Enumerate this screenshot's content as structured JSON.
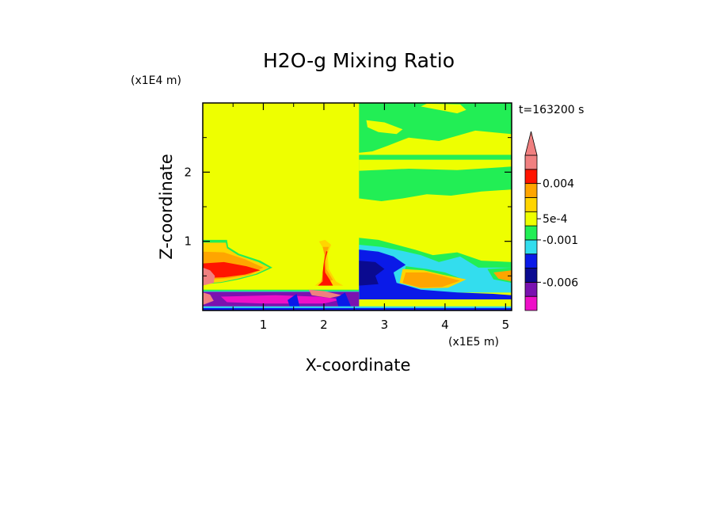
{
  "colors": {
    "yellow": "#eeff00",
    "green": "#22ee55",
    "cyan": "#33ddee",
    "blue": "#0a1ae8",
    "navy": "#0a0a90",
    "purple": "#7a12b0",
    "magenta": "#ee10c8",
    "orange": "#ffa500",
    "gold": "#ffd500",
    "red": "#ff1400",
    "salmon": "#f08080",
    "white": "#ffffff"
  },
  "chart_data": {
    "type": "heatmap",
    "title": "H2O-g Mixing Ratio",
    "xlabel": "X-coordinate",
    "ylabel": "Z-coordinate",
    "x_unit": "(x1E5 m)",
    "y_unit": "(x1E4 m)",
    "time_label": "t=163200 s",
    "xlim": [
      0,
      5.1
    ],
    "ylim": [
      0,
      3.0
    ],
    "x_ticks": [
      {
        "value": 1,
        "label": "1"
      },
      {
        "value": 2,
        "label": "2"
      },
      {
        "value": 3,
        "label": "3"
      },
      {
        "value": 4,
        "label": "4"
      },
      {
        "value": 5,
        "label": "5"
      }
    ],
    "y_ticks": [
      {
        "value": 1,
        "label": "1"
      },
      {
        "value": 2,
        "label": "2"
      }
    ],
    "colorbar": {
      "levels": [
        {
          "color": "magenta"
        },
        {
          "color": "purple"
        },
        {
          "color": "navy"
        },
        {
          "color": "blue"
        },
        {
          "color": "cyan"
        },
        {
          "color": "green"
        },
        {
          "color": "yellow"
        },
        {
          "color": "gold"
        },
        {
          "color": "orange"
        },
        {
          "color": "red"
        },
        {
          "color": "salmon"
        }
      ],
      "labels": [
        {
          "level": 2.0,
          "text": "-0.006"
        },
        {
          "level": 5.0,
          "text": "-0.001"
        },
        {
          "level": 6.5,
          "text": "5e-4"
        },
        {
          "level": 9.0,
          "text": "0.004"
        }
      ]
    },
    "regions": [
      {
        "color": "yellow",
        "pts": [
          [
            0,
            3.0
          ],
          [
            5.1,
            3.0
          ],
          [
            5.1,
            0
          ],
          [
            0,
            0
          ]
        ]
      },
      {
        "color": "green",
        "pts": [
          [
            2.58,
            3.0
          ],
          [
            5.1,
            3.0
          ],
          [
            5.1,
            2.55
          ],
          [
            4.5,
            2.6
          ],
          [
            3.9,
            2.45
          ],
          [
            3.4,
            2.5
          ],
          [
            3.05,
            2.38
          ],
          [
            2.8,
            2.3
          ],
          [
            2.58,
            2.28
          ]
        ]
      },
      {
        "color": "green",
        "pts": [
          [
            2.58,
            2.25
          ],
          [
            5.1,
            2.25
          ],
          [
            5.1,
            1.75
          ],
          [
            4.6,
            1.72
          ],
          [
            4.1,
            1.66
          ],
          [
            3.7,
            1.68
          ],
          [
            3.3,
            1.62
          ],
          [
            2.95,
            1.58
          ],
          [
            2.58,
            1.62
          ]
        ]
      },
      {
        "color": "yellow",
        "pts": [
          [
            2.58,
            2.18
          ],
          [
            5.1,
            2.18
          ],
          [
            5.1,
            2.08
          ],
          [
            4.2,
            2.03
          ],
          [
            3.4,
            2.05
          ],
          [
            2.58,
            2.02
          ]
        ]
      },
      {
        "color": "yellow",
        "pts": [
          [
            2.7,
            2.75
          ],
          [
            3.0,
            2.72
          ],
          [
            3.3,
            2.62
          ],
          [
            3.2,
            2.55
          ],
          [
            2.9,
            2.58
          ],
          [
            2.72,
            2.65
          ]
        ]
      },
      {
        "color": "yellow",
        "pts": [
          [
            3.6,
            2.95
          ],
          [
            3.9,
            2.9
          ],
          [
            4.2,
            2.85
          ],
          [
            4.35,
            2.9
          ],
          [
            4.25,
            2.98
          ],
          [
            3.7,
            2.99
          ]
        ]
      },
      {
        "color": "green",
        "pts": [
          [
            0,
            1.02
          ],
          [
            0.4,
            1.02
          ],
          [
            0.42,
            0.92
          ],
          [
            0.6,
            0.82
          ],
          [
            0.95,
            0.72
          ],
          [
            1.15,
            0.62
          ],
          [
            0.9,
            0.52
          ],
          [
            0.6,
            0.45
          ],
          [
            0.3,
            0.4
          ],
          [
            0,
            0.38
          ]
        ]
      },
      {
        "color": "gold",
        "pts": [
          [
            0,
            0.98
          ],
          [
            0.38,
            0.98
          ],
          [
            0.4,
            0.9
          ],
          [
            0.58,
            0.8
          ],
          [
            0.92,
            0.7
          ],
          [
            1.1,
            0.62
          ],
          [
            0.88,
            0.53
          ],
          [
            0.58,
            0.46
          ],
          [
            0.3,
            0.41
          ],
          [
            0,
            0.39
          ]
        ]
      },
      {
        "color": "orange",
        "pts": [
          [
            0,
            0.85
          ],
          [
            0.35,
            0.84
          ],
          [
            0.7,
            0.74
          ],
          [
            1.0,
            0.62
          ],
          [
            0.78,
            0.52
          ],
          [
            0.45,
            0.47
          ],
          [
            0,
            0.44
          ]
        ]
      },
      {
        "color": "red",
        "pts": [
          [
            0,
            0.68
          ],
          [
            0.35,
            0.7
          ],
          [
            0.72,
            0.64
          ],
          [
            0.95,
            0.58
          ],
          [
            0.7,
            0.52
          ],
          [
            0.35,
            0.48
          ],
          [
            0,
            0.47
          ]
        ]
      },
      {
        "color": "salmon",
        "pts": [
          [
            0,
            0.62
          ],
          [
            0.12,
            0.58
          ],
          [
            0.2,
            0.5
          ],
          [
            0.18,
            0.4
          ],
          [
            0,
            0.36
          ]
        ]
      },
      {
        "color": "gold",
        "pts": [
          [
            1.92,
            1.0
          ],
          [
            2.02,
            1.02
          ],
          [
            2.12,
            0.95
          ],
          [
            2.06,
            0.82
          ],
          [
            2.08,
            0.6
          ],
          [
            2.2,
            0.42
          ],
          [
            2.32,
            0.36
          ],
          [
            1.85,
            0.36
          ],
          [
            1.98,
            0.45
          ],
          [
            1.99,
            0.6
          ],
          [
            2.02,
            0.85
          ]
        ]
      },
      {
        "color": "orange",
        "pts": [
          [
            1.98,
            0.92
          ],
          [
            2.08,
            0.92
          ],
          [
            2.03,
            0.8
          ],
          [
            2.04,
            0.6
          ],
          [
            2.15,
            0.44
          ],
          [
            1.95,
            0.4
          ],
          [
            2.0,
            0.6
          ],
          [
            2.01,
            0.8
          ]
        ]
      },
      {
        "color": "red",
        "pts": [
          [
            2.06,
            0.85
          ],
          [
            2.01,
            0.7
          ],
          [
            2.02,
            0.55
          ],
          [
            2.1,
            0.44
          ],
          [
            2.15,
            0.36
          ],
          [
            1.9,
            0.36
          ],
          [
            1.98,
            0.42
          ],
          [
            1.98,
            0.55
          ],
          [
            2.0,
            0.7
          ],
          [
            2.04,
            0.86
          ]
        ]
      },
      {
        "color": "green",
        "pts": [
          [
            2.58,
            1.05
          ],
          [
            2.9,
            1.02
          ],
          [
            3.2,
            0.95
          ],
          [
            3.5,
            0.88
          ],
          [
            3.8,
            0.8
          ],
          [
            4.2,
            0.84
          ],
          [
            4.6,
            0.72
          ],
          [
            5.1,
            0.7
          ],
          [
            5.1,
            0.26
          ],
          [
            2.58,
            0.26
          ]
        ]
      },
      {
        "color": "cyan",
        "pts": [
          [
            2.58,
            0.95
          ],
          [
            2.95,
            0.92
          ],
          [
            3.3,
            0.86
          ],
          [
            3.6,
            0.8
          ],
          [
            3.9,
            0.7
          ],
          [
            4.25,
            0.78
          ],
          [
            4.55,
            0.62
          ],
          [
            5.1,
            0.62
          ],
          [
            5.1,
            0.26
          ],
          [
            2.58,
            0.26
          ]
        ]
      },
      {
        "color": "blue",
        "pts": [
          [
            2.58,
            0.88
          ],
          [
            2.9,
            0.85
          ],
          [
            3.15,
            0.78
          ],
          [
            3.35,
            0.66
          ],
          [
            3.15,
            0.55
          ],
          [
            3.2,
            0.4
          ],
          [
            3.6,
            0.3
          ],
          [
            4.2,
            0.26
          ],
          [
            4.8,
            0.24
          ],
          [
            5.1,
            0.22
          ],
          [
            5.1,
            0.16
          ],
          [
            2.58,
            0.16
          ]
        ]
      },
      {
        "color": "navy",
        "pts": [
          [
            2.58,
            0.72
          ],
          [
            2.85,
            0.7
          ],
          [
            3.0,
            0.6
          ],
          [
            2.85,
            0.5
          ],
          [
            2.9,
            0.38
          ],
          [
            2.58,
            0.36
          ]
        ]
      },
      {
        "color": "green",
        "pts": [
          [
            3.35,
            0.64
          ],
          [
            3.7,
            0.6
          ],
          [
            4.0,
            0.55
          ],
          [
            4.3,
            0.45
          ],
          [
            4.0,
            0.35
          ],
          [
            3.6,
            0.34
          ],
          [
            3.3,
            0.42
          ]
        ]
      },
      {
        "color": "gold",
        "pts": [
          [
            3.3,
            0.6
          ],
          [
            3.65,
            0.58
          ],
          [
            3.95,
            0.52
          ],
          [
            4.35,
            0.45
          ],
          [
            4.05,
            0.33
          ],
          [
            3.6,
            0.32
          ],
          [
            3.25,
            0.4
          ]
        ]
      },
      {
        "color": "orange",
        "pts": [
          [
            3.35,
            0.55
          ],
          [
            3.7,
            0.55
          ],
          [
            3.95,
            0.5
          ],
          [
            4.25,
            0.43
          ],
          [
            3.95,
            0.34
          ],
          [
            3.6,
            0.33
          ],
          [
            3.3,
            0.4
          ]
        ]
      },
      {
        "color": "green",
        "pts": [
          [
            4.7,
            0.6
          ],
          [
            5.1,
            0.62
          ],
          [
            5.1,
            0.4
          ],
          [
            4.8,
            0.45
          ]
        ]
      },
      {
        "color": "orange",
        "pts": [
          [
            4.8,
            0.55
          ],
          [
            5.1,
            0.58
          ],
          [
            5.1,
            0.42
          ],
          [
            4.88,
            0.46
          ]
        ]
      },
      {
        "color": "green",
        "pts": [
          [
            0,
            0.3
          ],
          [
            2.58,
            0.3
          ],
          [
            2.58,
            0.0
          ],
          [
            0,
            0.0
          ]
        ]
      },
      {
        "color": "cyan",
        "pts": [
          [
            0,
            0.28
          ],
          [
            2.58,
            0.28
          ],
          [
            2.58,
            0.0
          ],
          [
            0,
            0.0
          ]
        ]
      },
      {
        "color": "purple",
        "pts": [
          [
            0,
            0.27
          ],
          [
            2.58,
            0.27
          ],
          [
            2.58,
            0.05
          ],
          [
            0,
            0.05
          ]
        ]
      },
      {
        "color": "magenta",
        "pts": [
          [
            0.3,
            0.2
          ],
          [
            1.2,
            0.22
          ],
          [
            1.9,
            0.2
          ],
          [
            2.3,
            0.16
          ],
          [
            2.0,
            0.1
          ],
          [
            1.0,
            0.1
          ],
          [
            0.4,
            0.12
          ]
        ]
      },
      {
        "color": "salmon",
        "pts": [
          [
            0,
            0.26
          ],
          [
            0.12,
            0.23
          ],
          [
            0.18,
            0.14
          ],
          [
            0,
            0.08
          ]
        ]
      },
      {
        "color": "salmon",
        "pts": [
          [
            1.75,
            0.3
          ],
          [
            2.0,
            0.28
          ],
          [
            2.3,
            0.22
          ],
          [
            2.1,
            0.18
          ],
          [
            1.8,
            0.22
          ]
        ]
      },
      {
        "color": "blue",
        "pts": [
          [
            1.4,
            0.15
          ],
          [
            1.55,
            0.24
          ],
          [
            1.6,
            0.05
          ],
          [
            1.45,
            0.02
          ]
        ]
      },
      {
        "color": "blue",
        "pts": [
          [
            2.2,
            0.18
          ],
          [
            2.35,
            0.26
          ],
          [
            2.45,
            0.05
          ],
          [
            2.25,
            0.02
          ]
        ]
      },
      {
        "color": "cyan",
        "pts": [
          [
            0,
            0.06
          ],
          [
            5.1,
            0.06
          ],
          [
            5.1,
            0.0
          ],
          [
            0,
            0.0
          ]
        ]
      },
      {
        "color": "blue",
        "pts": [
          [
            0,
            0.035
          ],
          [
            5.1,
            0.035
          ],
          [
            5.1,
            0.0
          ],
          [
            0,
            0.0
          ]
        ]
      }
    ]
  }
}
